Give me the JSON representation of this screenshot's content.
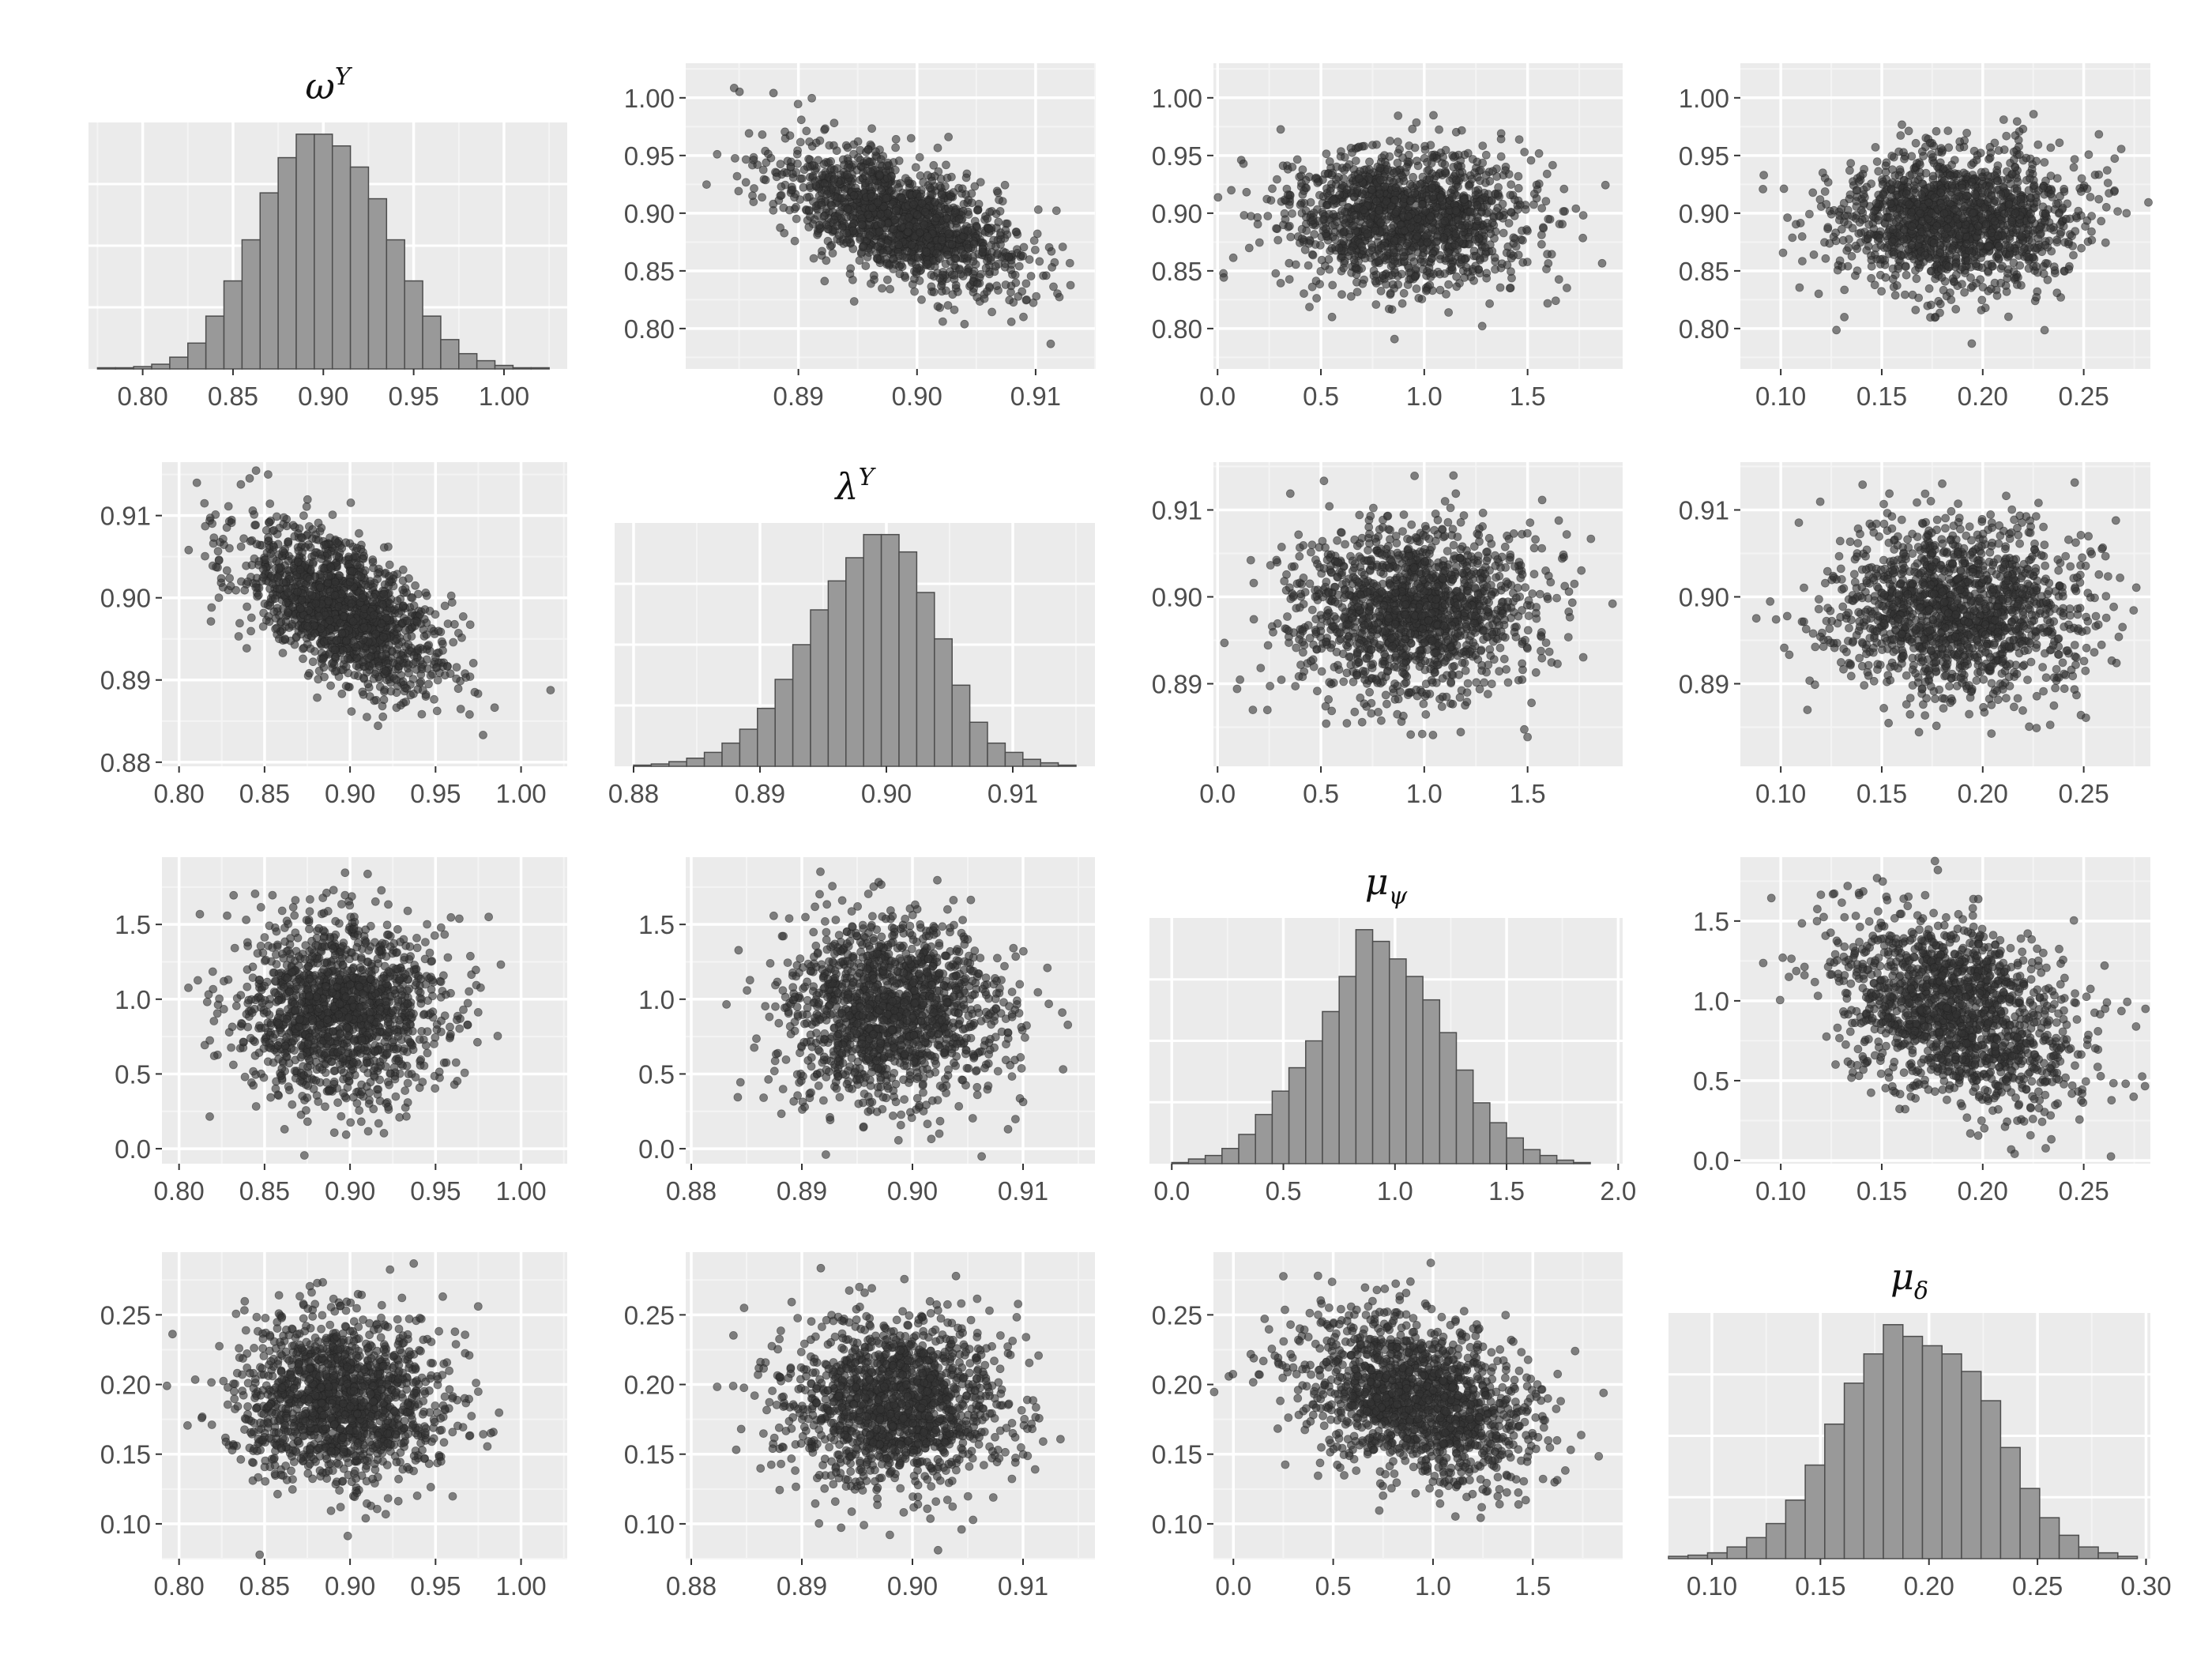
{
  "colors": {
    "panel_bg": "#ebebeb",
    "grid_major": "#ffffff",
    "grid_minor": "#f4f4f4",
    "bar_fill": "#999999",
    "bar_stroke": "#4d4d4d",
    "point": "#333333",
    "tick_text": "#4d4d4d"
  },
  "chart_data": [
    {
      "id": "r1c1",
      "type": "histogram",
      "variable": "ωY",
      "title": {
        "base": "ω",
        "sup": "Y",
        "sub": ""
      },
      "x_range": [
        0.77,
        1.035
      ],
      "x_ticks": [
        0.8,
        0.85,
        0.9,
        0.95,
        1.0
      ],
      "x_tick_labels": [
        "0.80",
        "0.85",
        "0.90",
        "0.95",
        "1.00"
      ],
      "bins": [
        0.775,
        0.785,
        0.795,
        0.805,
        0.815,
        0.825,
        0.835,
        0.845,
        0.855,
        0.865,
        0.875,
        0.885,
        0.895,
        0.905,
        0.915,
        0.925,
        0.935,
        0.945,
        0.955,
        0.965,
        0.975,
        0.985,
        0.995,
        1.005,
        1.015,
        1.025
      ],
      "counts": [
        1,
        1,
        2,
        4,
        10,
        22,
        45,
        75,
        110,
        150,
        180,
        200,
        200,
        190,
        172,
        145,
        110,
        75,
        45,
        25,
        13,
        7,
        3,
        1,
        1
      ]
    },
    {
      "id": "r1c2",
      "type": "scatter",
      "x_var": "λY",
      "y_var": "ωY",
      "x_range": [
        0.8805,
        0.915
      ],
      "y_range": [
        0.765,
        1.03
      ],
      "x_ticks": [
        0.89,
        0.9,
        0.91
      ],
      "x_tick_labels": [
        "0.89",
        "0.90",
        "0.91"
      ],
      "y_ticks": [
        0.8,
        0.85,
        0.9,
        0.95,
        1.0
      ],
      "y_tick_labels": [
        "0.80",
        "0.85",
        "0.90",
        "0.95",
        "1.00"
      ],
      "mean": [
        0.8985,
        0.895
      ],
      "sd": [
        0.005,
        0.03
      ],
      "corr": -0.6,
      "n": 1500
    },
    {
      "id": "r1c3",
      "type": "scatter",
      "x_var": "μψ",
      "y_var": "ωY",
      "x_range": [
        -0.02,
        1.96
      ],
      "y_range": [
        0.765,
        1.03
      ],
      "x_ticks": [
        0.0,
        0.5,
        1.0,
        1.5
      ],
      "x_tick_labels": [
        "0.0",
        "0.5",
        "1.0",
        "1.5"
      ],
      "y_ticks": [
        0.8,
        0.85,
        0.9,
        0.95,
        1.0
      ],
      "y_tick_labels": [
        "0.80",
        "0.85",
        "0.90",
        "0.95",
        "1.00"
      ],
      "mean": [
        0.93,
        0.895
      ],
      "sd": [
        0.3,
        0.03
      ],
      "corr": 0.0,
      "n": 1500
    },
    {
      "id": "r1c4",
      "type": "scatter",
      "x_var": "μδ",
      "y_var": "ωY",
      "x_range": [
        0.08,
        0.283
      ],
      "y_range": [
        0.765,
        1.03
      ],
      "x_ticks": [
        0.1,
        0.15,
        0.2,
        0.25
      ],
      "x_tick_labels": [
        "0.10",
        "0.15",
        "0.20",
        "0.25"
      ],
      "y_ticks": [
        0.8,
        0.85,
        0.9,
        0.95,
        1.0
      ],
      "y_tick_labels": [
        "0.80",
        "0.85",
        "0.90",
        "0.95",
        "1.00"
      ],
      "mean": [
        0.188,
        0.895
      ],
      "sd": [
        0.03,
        0.03
      ],
      "corr": 0.0,
      "n": 1500
    },
    {
      "id": "r2c1",
      "type": "scatter",
      "x_var": "ωY",
      "y_var": "λY",
      "x_range": [
        0.79,
        1.027
      ],
      "y_range": [
        0.8795,
        0.9165
      ],
      "x_ticks": [
        0.8,
        0.85,
        0.9,
        0.95,
        1.0
      ],
      "x_tick_labels": [
        "0.80",
        "0.85",
        "0.90",
        "0.95",
        "1.00"
      ],
      "y_ticks": [
        0.88,
        0.89,
        0.9,
        0.91
      ],
      "y_tick_labels": [
        "0.88",
        "0.89",
        "0.90",
        "0.91"
      ],
      "mean": [
        0.895,
        0.8985
      ],
      "sd": [
        0.03,
        0.005
      ],
      "corr": -0.6,
      "n": 1500
    },
    {
      "id": "r2c2",
      "type": "histogram",
      "variable": "λY",
      "title": {
        "base": "λ",
        "sup": "Y",
        "sub": ""
      },
      "x_range": [
        0.8785,
        0.9165
      ],
      "x_ticks": [
        0.88,
        0.89,
        0.9,
        0.91
      ],
      "x_tick_labels": [
        "0.88",
        "0.89",
        "0.90",
        "0.91"
      ],
      "bins": [
        0.88,
        0.8814,
        0.8828,
        0.8842,
        0.8856,
        0.887,
        0.8884,
        0.8898,
        0.8912,
        0.8926,
        0.894,
        0.8954,
        0.8968,
        0.8982,
        0.8996,
        0.901,
        0.9024,
        0.9038,
        0.9052,
        0.9066,
        0.908,
        0.9094,
        0.9108,
        0.9122,
        0.9136,
        0.915
      ],
      "counts": [
        1,
        2,
        4,
        7,
        12,
        20,
        32,
        50,
        75,
        105,
        135,
        160,
        180,
        200,
        200,
        185,
        150,
        110,
        70,
        38,
        20,
        12,
        6,
        3,
        1
      ]
    },
    {
      "id": "r2c3",
      "type": "scatter",
      "x_var": "μψ",
      "y_var": "λY",
      "x_range": [
        -0.02,
        1.96
      ],
      "y_range": [
        0.8805,
        0.9155
      ],
      "x_ticks": [
        0.0,
        0.5,
        1.0,
        1.5
      ],
      "x_tick_labels": [
        "0.0",
        "0.5",
        "1.0",
        "1.5"
      ],
      "y_ticks": [
        0.89,
        0.9,
        0.91
      ],
      "y_tick_labels": [
        "0.89",
        "0.90",
        "0.91"
      ],
      "mean": [
        0.93,
        0.8985
      ],
      "sd": [
        0.3,
        0.005
      ],
      "corr": 0.0,
      "n": 1500
    },
    {
      "id": "r2c4",
      "type": "scatter",
      "x_var": "μδ",
      "y_var": "λY",
      "x_range": [
        0.08,
        0.283
      ],
      "y_range": [
        0.8805,
        0.9155
      ],
      "x_ticks": [
        0.1,
        0.15,
        0.2,
        0.25
      ],
      "x_tick_labels": [
        "0.10",
        "0.15",
        "0.20",
        "0.25"
      ],
      "y_ticks": [
        0.89,
        0.9,
        0.91
      ],
      "y_tick_labels": [
        "0.89",
        "0.90",
        "0.91"
      ],
      "mean": [
        0.188,
        0.8985
      ],
      "sd": [
        0.03,
        0.005
      ],
      "corr": 0.0,
      "n": 1500
    },
    {
      "id": "r3c1",
      "type": "scatter",
      "x_var": "ωY",
      "y_var": "μψ",
      "x_range": [
        0.79,
        1.027
      ],
      "y_range": [
        -0.1,
        1.95
      ],
      "x_ticks": [
        0.8,
        0.85,
        0.9,
        0.95,
        1.0
      ],
      "x_tick_labels": [
        "0.80",
        "0.85",
        "0.90",
        "0.95",
        "1.00"
      ],
      "y_ticks": [
        0.0,
        0.5,
        1.0,
        1.5
      ],
      "y_tick_labels": [
        "0.0",
        "0.5",
        "1.0",
        "1.5"
      ],
      "mean": [
        0.895,
        0.93
      ],
      "sd": [
        0.03,
        0.3
      ],
      "corr": 0.0,
      "n": 1500
    },
    {
      "id": "r3c2",
      "type": "scatter",
      "x_var": "λY",
      "y_var": "μψ",
      "x_range": [
        0.8795,
        0.9165
      ],
      "y_range": [
        -0.1,
        1.95
      ],
      "x_ticks": [
        0.88,
        0.89,
        0.9,
        0.91
      ],
      "x_tick_labels": [
        "0.88",
        "0.89",
        "0.90",
        "0.91"
      ],
      "y_ticks": [
        0.0,
        0.5,
        1.0,
        1.5
      ],
      "y_tick_labels": [
        "0.0",
        "0.5",
        "1.0",
        "1.5"
      ],
      "mean": [
        0.8985,
        0.93
      ],
      "sd": [
        0.005,
        0.3
      ],
      "corr": 0.0,
      "n": 1500
    },
    {
      "id": "r3c3",
      "type": "histogram",
      "variable": "μψ",
      "title": {
        "base": "μ",
        "sup": "",
        "sub": "ψ"
      },
      "x_range": [
        -0.1,
        2.02
      ],
      "x_ticks": [
        0.0,
        0.5,
        1.0,
        1.5,
        2.0
      ],
      "x_tick_labels": [
        "0.0",
        "0.5",
        "1.0",
        "1.5",
        "2.0"
      ],
      "bins": [
        0.0,
        0.075,
        0.15,
        0.225,
        0.3,
        0.375,
        0.45,
        0.525,
        0.6,
        0.675,
        0.75,
        0.825,
        0.9,
        0.975,
        1.05,
        1.125,
        1.2,
        1.275,
        1.35,
        1.425,
        1.5,
        1.575,
        1.65,
        1.725,
        1.8,
        1.875
      ],
      "counts": [
        1,
        4,
        7,
        13,
        25,
        42,
        62,
        82,
        105,
        130,
        160,
        200,
        190,
        175,
        160,
        140,
        112,
        80,
        52,
        35,
        22,
        12,
        7,
        3,
        1
      ]
    },
    {
      "id": "r3c4",
      "type": "scatter",
      "x_var": "μδ",
      "y_var": "μψ",
      "x_range": [
        0.08,
        0.283
      ],
      "y_range": [
        -0.02,
        1.9
      ],
      "x_ticks": [
        0.1,
        0.15,
        0.2,
        0.25
      ],
      "x_tick_labels": [
        "0.10",
        "0.15",
        "0.20",
        "0.25"
      ],
      "y_ticks": [
        0.0,
        0.5,
        1.0,
        1.5
      ],
      "y_tick_labels": [
        "0.0",
        "0.5",
        "1.0",
        "1.5"
      ],
      "mean": [
        0.188,
        0.93
      ],
      "sd": [
        0.03,
        0.3
      ],
      "corr": -0.35,
      "n": 1500
    },
    {
      "id": "r4c1",
      "type": "scatter",
      "x_var": "ωY",
      "y_var": "μδ",
      "x_range": [
        0.79,
        1.027
      ],
      "y_range": [
        0.075,
        0.295
      ],
      "x_ticks": [
        0.8,
        0.85,
        0.9,
        0.95,
        1.0
      ],
      "x_tick_labels": [
        "0.80",
        "0.85",
        "0.90",
        "0.95",
        "1.00"
      ],
      "y_ticks": [
        0.1,
        0.15,
        0.2,
        0.25
      ],
      "y_tick_labels": [
        "0.10",
        "0.15",
        "0.20",
        "0.25"
      ],
      "mean": [
        0.895,
        0.188
      ],
      "sd": [
        0.03,
        0.03
      ],
      "corr": 0.0,
      "n": 1500
    },
    {
      "id": "r4c2",
      "type": "scatter",
      "x_var": "λY",
      "y_var": "μδ",
      "x_range": [
        0.8795,
        0.9165
      ],
      "y_range": [
        0.075,
        0.295
      ],
      "x_ticks": [
        0.88,
        0.89,
        0.9,
        0.91
      ],
      "x_tick_labels": [
        "0.88",
        "0.89",
        "0.90",
        "0.91"
      ],
      "y_ticks": [
        0.1,
        0.15,
        0.2,
        0.25
      ],
      "y_tick_labels": [
        "0.10",
        "0.15",
        "0.20",
        "0.25"
      ],
      "mean": [
        0.8985,
        0.188
      ],
      "sd": [
        0.005,
        0.03
      ],
      "corr": 0.0,
      "n": 1500
    },
    {
      "id": "r4c3",
      "type": "scatter",
      "x_var": "μψ",
      "y_var": "μδ",
      "x_range": [
        -0.1,
        1.95
      ],
      "y_range": [
        0.075,
        0.295
      ],
      "x_ticks": [
        0.0,
        0.5,
        1.0,
        1.5
      ],
      "x_tick_labels": [
        "0.0",
        "0.5",
        "1.0",
        "1.5"
      ],
      "y_ticks": [
        0.1,
        0.15,
        0.2,
        0.25
      ],
      "y_tick_labels": [
        "0.10",
        "0.15",
        "0.20",
        "0.25"
      ],
      "mean": [
        0.93,
        0.188
      ],
      "sd": [
        0.3,
        0.03
      ],
      "corr": -0.35,
      "n": 1500
    },
    {
      "id": "r4c4",
      "type": "histogram",
      "variable": "μδ",
      "title": {
        "base": "μ",
        "sup": "",
        "sub": "δ"
      },
      "x_range": [
        0.08,
        0.302
      ],
      "x_ticks": [
        0.1,
        0.15,
        0.2,
        0.25,
        0.3
      ],
      "x_tick_labels": [
        "0.10",
        "0.15",
        "0.20",
        "0.25",
        "0.30"
      ],
      "bins": [
        0.08,
        0.089,
        0.098,
        0.107,
        0.116,
        0.125,
        0.134,
        0.143,
        0.152,
        0.161,
        0.17,
        0.179,
        0.188,
        0.197,
        0.206,
        0.215,
        0.224,
        0.233,
        0.242,
        0.251,
        0.26,
        0.269,
        0.278,
        0.287,
        0.296
      ],
      "counts": [
        2,
        3,
        5,
        10,
        18,
        30,
        50,
        80,
        115,
        150,
        175,
        200,
        190,
        182,
        175,
        160,
        135,
        95,
        60,
        35,
        20,
        10,
        5,
        2
      ]
    }
  ]
}
